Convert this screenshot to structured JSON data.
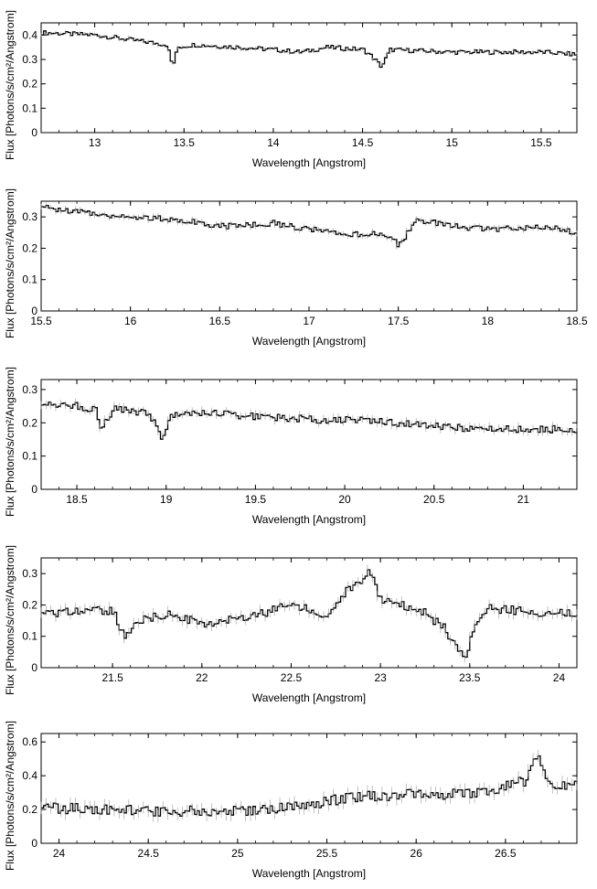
{
  "chart_data": [
    {
      "type": "line",
      "xlabel": "Wavelength [Angstrom]",
      "ylabel": "Flux [Photons/s/cm²/Angstrom]",
      "xlim": [
        12.7,
        15.7
      ],
      "ylim": [
        0,
        0.45
      ],
      "xticks": [
        "13",
        "13.5",
        "14",
        "14.5",
        "15",
        "15.5"
      ],
      "yticks": [
        "0",
        "0.1",
        "0.2",
        "0.3",
        "0.4"
      ],
      "series": [
        {
          "x": [
            12.7,
            13.0,
            13.3,
            13.4,
            13.43,
            13.46,
            13.55,
            13.8,
            14.0,
            14.15,
            14.3,
            14.5,
            14.55,
            14.6,
            14.65,
            15.0,
            15.2,
            15.5,
            15.7
          ],
          "y": [
            0.41,
            0.4,
            0.37,
            0.36,
            0.27,
            0.35,
            0.36,
            0.35,
            0.34,
            0.33,
            0.35,
            0.34,
            0.31,
            0.27,
            0.34,
            0.33,
            0.33,
            0.33,
            0.32
          ]
        }
      ]
    },
    {
      "type": "line",
      "xlabel": "Wavelength [Angstrom]",
      "ylabel": "Flux [Photons/s/cm²/Angstrom]",
      "xlim": [
        15.5,
        18.5
      ],
      "ylim": [
        0,
        0.35
      ],
      "xticks": [
        "15.5",
        "16",
        "16.5",
        "17",
        "17.5",
        "18",
        "18.5"
      ],
      "yticks": [
        "0",
        "0.1",
        "0.2",
        "0.3"
      ],
      "series": [
        {
          "x": [
            15.5,
            15.8,
            16.0,
            16.3,
            16.5,
            16.8,
            17.0,
            17.2,
            17.4,
            17.5,
            17.55,
            17.6,
            17.8,
            18.0,
            18.3,
            18.5
          ],
          "y": [
            0.33,
            0.31,
            0.3,
            0.29,
            0.27,
            0.28,
            0.26,
            0.24,
            0.25,
            0.21,
            0.25,
            0.29,
            0.27,
            0.26,
            0.27,
            0.25
          ]
        }
      ]
    },
    {
      "type": "line",
      "xlabel": "Wavelength [Angstrom]",
      "ylabel": "Flux [Photons/s/cm²/Angstrom]",
      "xlim": [
        18.3,
        21.3
      ],
      "ylim": [
        0,
        0.33
      ],
      "xticks": [
        "18.5",
        "19",
        "19.5",
        "20",
        "20.5",
        "21"
      ],
      "yticks": [
        "0",
        "0.1",
        "0.2",
        "0.3"
      ],
      "series": [
        {
          "x": [
            18.3,
            18.5,
            18.6,
            18.63,
            18.7,
            18.9,
            18.97,
            19.02,
            19.2,
            19.5,
            19.8,
            20.0,
            20.3,
            20.5,
            20.8,
            21.0,
            21.3
          ],
          "y": [
            0.26,
            0.25,
            0.24,
            0.18,
            0.24,
            0.23,
            0.15,
            0.22,
            0.23,
            0.22,
            0.21,
            0.21,
            0.2,
            0.19,
            0.18,
            0.18,
            0.18
          ]
        }
      ]
    },
    {
      "type": "line",
      "xlabel": "Wavelength [Angstrom]",
      "ylabel": "Flux [Photons/s/cm²/Angstrom]",
      "xlim": [
        21.1,
        24.1
      ],
      "ylim": [
        0,
        0.35
      ],
      "xticks": [
        "21.5",
        "22",
        "22.5",
        "23",
        "23.5",
        "24"
      ],
      "yticks": [
        "0",
        "0.1",
        "0.2",
        "0.3"
      ],
      "series": [
        {
          "x": [
            21.1,
            21.3,
            21.5,
            21.57,
            21.62,
            21.8,
            22.0,
            22.3,
            22.5,
            22.7,
            22.8,
            22.9,
            22.93,
            23.0,
            23.2,
            23.35,
            23.4,
            23.47,
            23.52,
            23.6,
            23.8,
            24.1
          ],
          "y": [
            0.17,
            0.18,
            0.18,
            0.09,
            0.15,
            0.17,
            0.14,
            0.17,
            0.2,
            0.17,
            0.24,
            0.28,
            0.31,
            0.21,
            0.19,
            0.13,
            0.08,
            0.03,
            0.12,
            0.19,
            0.18,
            0.17
          ]
        }
      ]
    },
    {
      "type": "line",
      "xlabel": "Wavelength [Angstrom]",
      "ylabel": "Flux [Photons/s/cm²/Angstrom]",
      "xlim": [
        23.9,
        26.9
      ],
      "ylim": [
        0,
        0.65
      ],
      "xticks": [
        "24",
        "24.5",
        "25",
        "25.5",
        "26",
        "26.5"
      ],
      "yticks": [
        "0",
        "0.2",
        "0.4",
        "0.6"
      ],
      "series": [
        {
          "x": [
            23.9,
            24.2,
            24.5,
            24.8,
            25.0,
            25.2,
            25.4,
            25.6,
            25.8,
            26.0,
            26.2,
            26.4,
            26.6,
            26.67,
            26.75,
            26.9
          ],
          "y": [
            0.21,
            0.2,
            0.19,
            0.19,
            0.19,
            0.21,
            0.23,
            0.27,
            0.28,
            0.29,
            0.29,
            0.31,
            0.37,
            0.51,
            0.35,
            0.35
          ]
        }
      ]
    }
  ]
}
